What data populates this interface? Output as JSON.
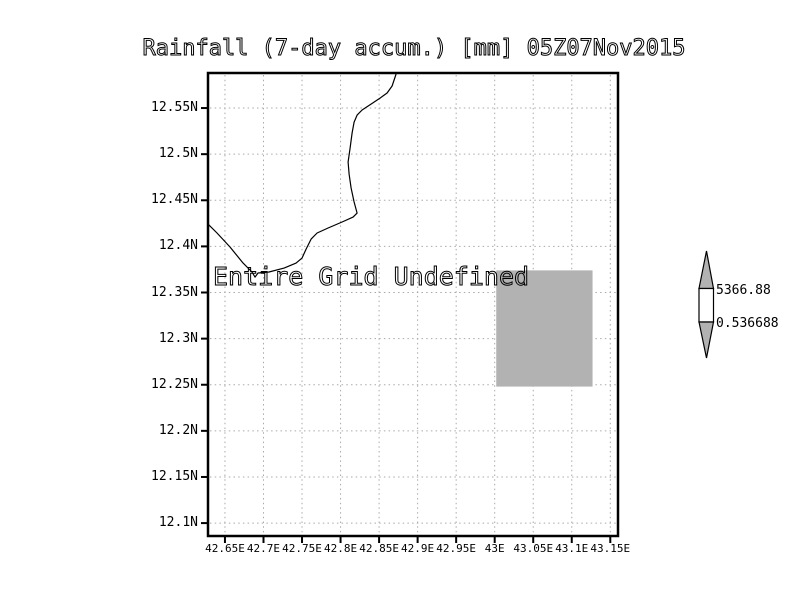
{
  "title": "Rainfall (7-day accum.) [mm] 05Z07Nov2015",
  "message": "Entire Grid Undefined",
  "colorbar": {
    "max_label": "5366.88",
    "min_label": "0.536688",
    "arrow_fill": "#b2b2b2",
    "box_fill": "#ffffff",
    "outline": "#000000"
  },
  "chart_data": {
    "type": "map",
    "title": "Rainfall (7-day accum.) [mm] 05Z07Nov2015",
    "status_message": "Entire Grid Undefined",
    "xlim": [
      42.628,
      43.16
    ],
    "ylim": [
      12.086,
      12.588
    ],
    "grid": "dotted",
    "grid_color": "#aaaaaa",
    "frame_color": "#000000",
    "colorbar_range": [
      0.536688,
      5366.88
    ],
    "x_ticks": [
      {
        "lon": 42.65,
        "label": "42.65E"
      },
      {
        "lon": 42.7,
        "label": "42.7E"
      },
      {
        "lon": 42.75,
        "label": "42.75E"
      },
      {
        "lon": 42.8,
        "label": "42.8E"
      },
      {
        "lon": 42.85,
        "label": "42.85E"
      },
      {
        "lon": 42.9,
        "label": "42.9E"
      },
      {
        "lon": 42.95,
        "label": "42.95E"
      },
      {
        "lon": 43.0,
        "label": "43E"
      },
      {
        "lon": 43.05,
        "label": "43.05E"
      },
      {
        "lon": 43.1,
        "label": "43.1E"
      },
      {
        "lon": 43.15,
        "label": "43.15E"
      }
    ],
    "y_ticks": [
      {
        "lat": 12.55,
        "label": "12.55N"
      },
      {
        "lat": 12.5,
        "label": "12.5N"
      },
      {
        "lat": 12.45,
        "label": "12.45N"
      },
      {
        "lat": 12.4,
        "label": "12.4N"
      },
      {
        "lat": 12.35,
        "label": "12.35N"
      },
      {
        "lat": 12.3,
        "label": "12.3N"
      },
      {
        "lat": 12.25,
        "label": "12.25N"
      },
      {
        "lat": 12.2,
        "label": "12.2N"
      },
      {
        "lat": 12.15,
        "label": "12.15N"
      },
      {
        "lat": 12.1,
        "label": "12.1N"
      }
    ],
    "undefined_region": {
      "lon_min": 43.002,
      "lon_max": 43.127,
      "lat_min": 12.248,
      "lat_max": 12.374,
      "fill": "#b2b2b2"
    },
    "coastline": [
      [
        42.628,
        12.4242
      ],
      [
        42.6397,
        12.4145
      ],
      [
        42.6566,
        12.3993
      ],
      [
        42.6735,
        12.3819
      ],
      [
        42.6851,
        12.3722
      ],
      [
        42.689,
        12.3667
      ],
      [
        42.6929,
        12.3711
      ],
      [
        42.7072,
        12.3722
      ],
      [
        42.7267,
        12.3765
      ],
      [
        42.7423,
        12.3819
      ],
      [
        42.75,
        12.3873
      ],
      [
        42.7553,
        12.3971
      ],
      [
        42.7618,
        12.4079
      ],
      [
        42.7695,
        12.4145
      ],
      [
        42.7838,
        12.4199
      ],
      [
        42.802,
        12.4264
      ],
      [
        42.8163,
        12.4318
      ],
      [
        42.8215,
        12.4361
      ],
      [
        42.8176,
        12.4481
      ],
      [
        42.8137,
        12.4633
      ],
      [
        42.8111,
        12.4784
      ],
      [
        42.8098,
        12.4915
      ],
      [
        42.8124,
        12.5066
      ],
      [
        42.815,
        12.5229
      ],
      [
        42.8176,
        12.5348
      ],
      [
        42.8215,
        12.5424
      ],
      [
        42.828,
        12.5479
      ],
      [
        42.8397,
        12.5544
      ],
      [
        42.8514,
        12.5609
      ],
      [
        42.8604,
        12.5663
      ],
      [
        42.8669,
        12.5739
      ],
      [
        42.8695,
        12.5804
      ],
      [
        42.8721,
        12.5869
      ]
    ]
  }
}
